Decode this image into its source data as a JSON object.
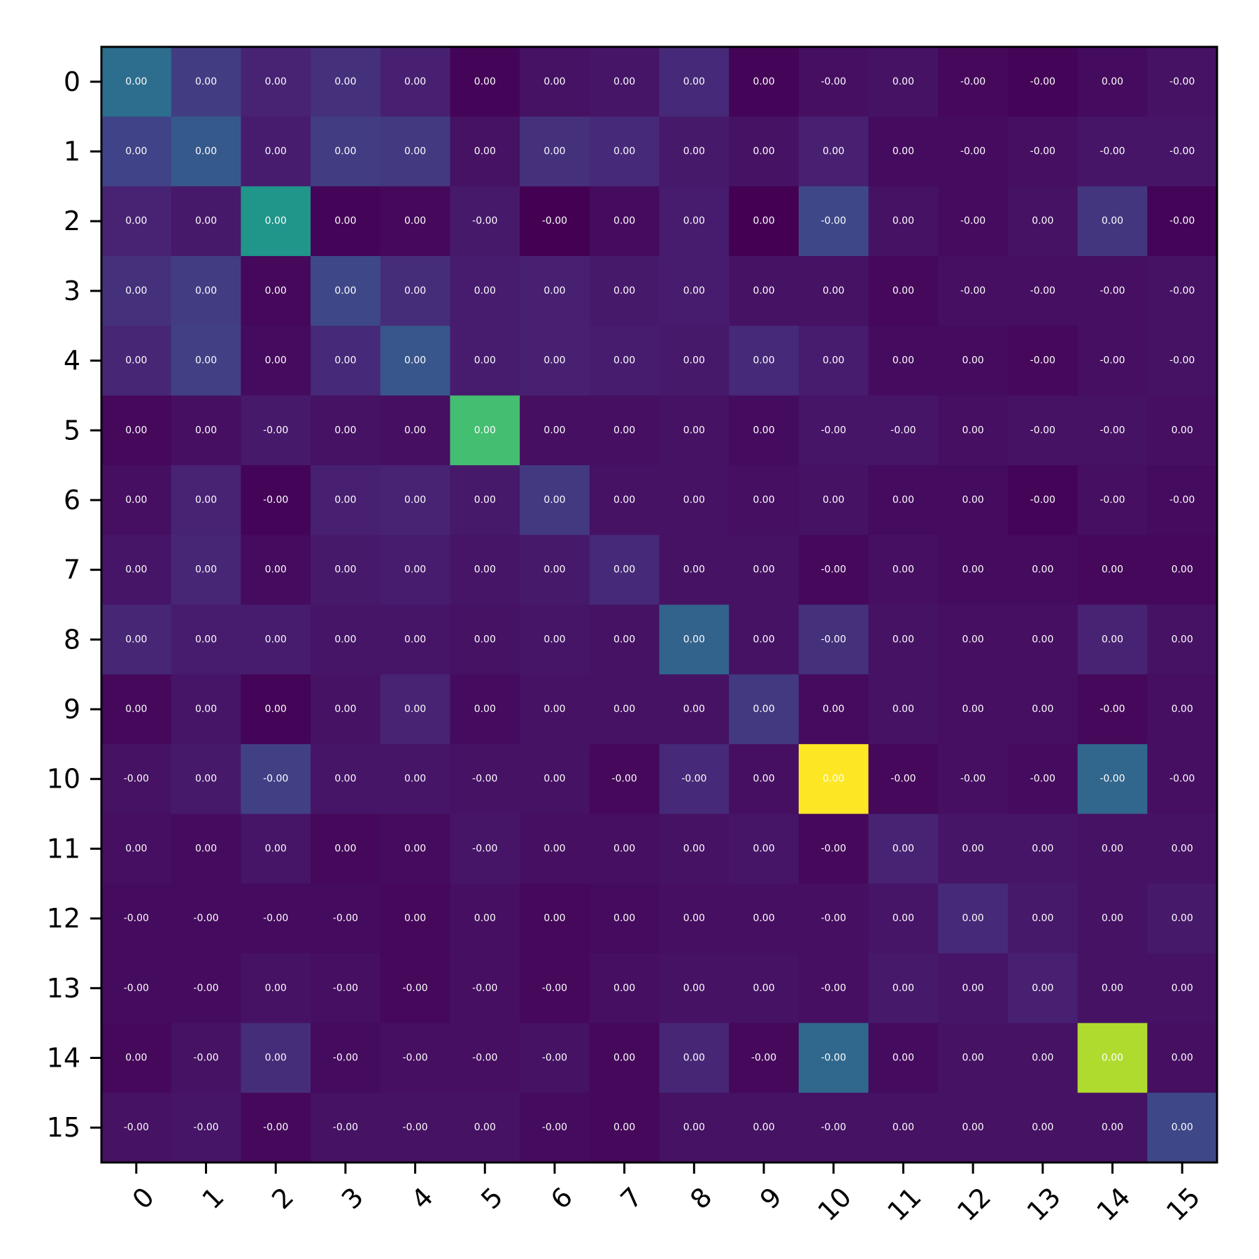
{
  "chart_data": {
    "type": "heatmap",
    "title": "",
    "xlabel": "",
    "ylabel": "",
    "colormap": "viridis",
    "x_tick_labels": [
      "0",
      "1",
      "2",
      "3",
      "4",
      "5",
      "6",
      "7",
      "8",
      "9",
      "10",
      "11",
      "12",
      "13",
      "14",
      "15"
    ],
    "y_tick_labels": [
      "0",
      "1",
      "2",
      "3",
      "4",
      "5",
      "6",
      "7",
      "8",
      "9",
      "10",
      "11",
      "12",
      "13",
      "14",
      "15"
    ],
    "color_values": [
      [
        0.36,
        0.18,
        0.1,
        0.14,
        0.09,
        0.01,
        0.05,
        0.06,
        0.12,
        0.01,
        0.04,
        0.05,
        0.02,
        0.01,
        0.03,
        0.05
      ],
      [
        0.2,
        0.28,
        0.08,
        0.18,
        0.17,
        0.05,
        0.14,
        0.12,
        0.07,
        0.05,
        0.09,
        0.03,
        0.03,
        0.04,
        0.06,
        0.06
      ],
      [
        0.1,
        0.07,
        0.52,
        0.01,
        0.02,
        0.07,
        0.0,
        0.03,
        0.08,
        0.0,
        0.22,
        0.05,
        0.03,
        0.05,
        0.16,
        0.01
      ],
      [
        0.14,
        0.18,
        0.02,
        0.22,
        0.13,
        0.08,
        0.09,
        0.07,
        0.08,
        0.05,
        0.05,
        0.02,
        0.04,
        0.04,
        0.04,
        0.05
      ],
      [
        0.11,
        0.19,
        0.03,
        0.12,
        0.27,
        0.08,
        0.09,
        0.08,
        0.07,
        0.12,
        0.08,
        0.03,
        0.03,
        0.02,
        0.04,
        0.05
      ],
      [
        0.02,
        0.04,
        0.07,
        0.05,
        0.04,
        0.7,
        0.04,
        0.04,
        0.05,
        0.03,
        0.06,
        0.06,
        0.04,
        0.05,
        0.05,
        0.04
      ],
      [
        0.04,
        0.1,
        0.01,
        0.09,
        0.1,
        0.07,
        0.17,
        0.05,
        0.05,
        0.04,
        0.05,
        0.03,
        0.03,
        0.01,
        0.04,
        0.03
      ],
      [
        0.06,
        0.11,
        0.03,
        0.07,
        0.08,
        0.06,
        0.07,
        0.12,
        0.05,
        0.05,
        0.02,
        0.04,
        0.03,
        0.03,
        0.02,
        0.02
      ],
      [
        0.11,
        0.08,
        0.08,
        0.06,
        0.06,
        0.05,
        0.06,
        0.05,
        0.32,
        0.05,
        0.14,
        0.05,
        0.04,
        0.04,
        0.1,
        0.05
      ],
      [
        0.02,
        0.06,
        0.01,
        0.05,
        0.1,
        0.03,
        0.05,
        0.05,
        0.05,
        0.17,
        0.03,
        0.05,
        0.04,
        0.04,
        0.02,
        0.04
      ],
      [
        0.05,
        0.07,
        0.19,
        0.06,
        0.06,
        0.05,
        0.05,
        0.02,
        0.12,
        0.04,
        1.0,
        0.02,
        0.04,
        0.03,
        0.33,
        0.04
      ],
      [
        0.04,
        0.03,
        0.06,
        0.02,
        0.03,
        0.06,
        0.04,
        0.04,
        0.05,
        0.06,
        0.02,
        0.1,
        0.06,
        0.06,
        0.05,
        0.05
      ],
      [
        0.03,
        0.03,
        0.03,
        0.03,
        0.02,
        0.04,
        0.02,
        0.03,
        0.04,
        0.04,
        0.04,
        0.06,
        0.12,
        0.07,
        0.05,
        0.07
      ],
      [
        0.03,
        0.03,
        0.05,
        0.04,
        0.02,
        0.04,
        0.02,
        0.04,
        0.05,
        0.05,
        0.04,
        0.07,
        0.06,
        0.09,
        0.05,
        0.05
      ],
      [
        0.02,
        0.05,
        0.13,
        0.03,
        0.04,
        0.04,
        0.05,
        0.02,
        0.11,
        0.02,
        0.34,
        0.03,
        0.05,
        0.05,
        0.88,
        0.04
      ],
      [
        0.05,
        0.06,
        0.02,
        0.05,
        0.05,
        0.05,
        0.03,
        0.02,
        0.05,
        0.05,
        0.05,
        0.05,
        0.05,
        0.05,
        0.05,
        0.22
      ]
    ],
    "cell_labels": [
      [
        "0.00",
        "0.00",
        "0.00",
        "0.00",
        "0.00",
        "0.00",
        "0.00",
        "0.00",
        "0.00",
        "0.00",
        "-0.00",
        "0.00",
        "-0.00",
        "-0.00",
        "0.00",
        "-0.00"
      ],
      [
        "0.00",
        "0.00",
        "0.00",
        "0.00",
        "0.00",
        "0.00",
        "0.00",
        "0.00",
        "0.00",
        "0.00",
        "0.00",
        "0.00",
        "-0.00",
        "-0.00",
        "-0.00",
        "-0.00"
      ],
      [
        "0.00",
        "0.00",
        "0.00",
        "0.00",
        "0.00",
        "-0.00",
        "-0.00",
        "0.00",
        "0.00",
        "0.00",
        "-0.00",
        "0.00",
        "-0.00",
        "0.00",
        "0.00",
        "-0.00"
      ],
      [
        "0.00",
        "0.00",
        "0.00",
        "0.00",
        "0.00",
        "0.00",
        "0.00",
        "0.00",
        "0.00",
        "0.00",
        "0.00",
        "0.00",
        "-0.00",
        "-0.00",
        "-0.00",
        "-0.00"
      ],
      [
        "0.00",
        "0.00",
        "0.00",
        "0.00",
        "0.00",
        "0.00",
        "0.00",
        "0.00",
        "0.00",
        "0.00",
        "0.00",
        "0.00",
        "0.00",
        "-0.00",
        "-0.00",
        "-0.00"
      ],
      [
        "0.00",
        "0.00",
        "-0.00",
        "0.00",
        "0.00",
        "0.00",
        "0.00",
        "0.00",
        "0.00",
        "0.00",
        "-0.00",
        "-0.00",
        "0.00",
        "-0.00",
        "-0.00",
        "0.00"
      ],
      [
        "0.00",
        "0.00",
        "-0.00",
        "0.00",
        "0.00",
        "0.00",
        "0.00",
        "0.00",
        "0.00",
        "0.00",
        "0.00",
        "0.00",
        "0.00",
        "-0.00",
        "-0.00",
        "-0.00"
      ],
      [
        "0.00",
        "0.00",
        "0.00",
        "0.00",
        "0.00",
        "0.00",
        "0.00",
        "0.00",
        "0.00",
        "0.00",
        "-0.00",
        "0.00",
        "0.00",
        "0.00",
        "0.00",
        "0.00"
      ],
      [
        "0.00",
        "0.00",
        "0.00",
        "0.00",
        "0.00",
        "0.00",
        "0.00",
        "0.00",
        "0.00",
        "0.00",
        "-0.00",
        "0.00",
        "0.00",
        "0.00",
        "0.00",
        "0.00"
      ],
      [
        "0.00",
        "0.00",
        "0.00",
        "0.00",
        "0.00",
        "0.00",
        "0.00",
        "0.00",
        "0.00",
        "0.00",
        "0.00",
        "0.00",
        "0.00",
        "0.00",
        "-0.00",
        "0.00"
      ],
      [
        "-0.00",
        "0.00",
        "-0.00",
        "0.00",
        "0.00",
        "-0.00",
        "0.00",
        "-0.00",
        "-0.00",
        "0.00",
        "0.00",
        "-0.00",
        "-0.00",
        "-0.00",
        "-0.00",
        "-0.00"
      ],
      [
        "0.00",
        "0.00",
        "0.00",
        "0.00",
        "0.00",
        "-0.00",
        "0.00",
        "0.00",
        "0.00",
        "0.00",
        "-0.00",
        "0.00",
        "0.00",
        "0.00",
        "0.00",
        "0.00"
      ],
      [
        "-0.00",
        "-0.00",
        "-0.00",
        "-0.00",
        "0.00",
        "0.00",
        "0.00",
        "0.00",
        "0.00",
        "0.00",
        "-0.00",
        "0.00",
        "0.00",
        "0.00",
        "0.00",
        "0.00"
      ],
      [
        "-0.00",
        "-0.00",
        "0.00",
        "-0.00",
        "-0.00",
        "-0.00",
        "-0.00",
        "0.00",
        "0.00",
        "0.00",
        "-0.00",
        "0.00",
        "0.00",
        "0.00",
        "0.00",
        "0.00"
      ],
      [
        "0.00",
        "-0.00",
        "0.00",
        "-0.00",
        "-0.00",
        "-0.00",
        "-0.00",
        "0.00",
        "0.00",
        "-0.00",
        "-0.00",
        "0.00",
        "0.00",
        "0.00",
        "0.00",
        "0.00"
      ],
      [
        "-0.00",
        "-0.00",
        "-0.00",
        "-0.00",
        "-0.00",
        "0.00",
        "-0.00",
        "0.00",
        "0.00",
        "0.00",
        "-0.00",
        "0.00",
        "0.00",
        "0.00",
        "0.00",
        "0.00"
      ]
    ],
    "grid": false,
    "legend": "none"
  }
}
